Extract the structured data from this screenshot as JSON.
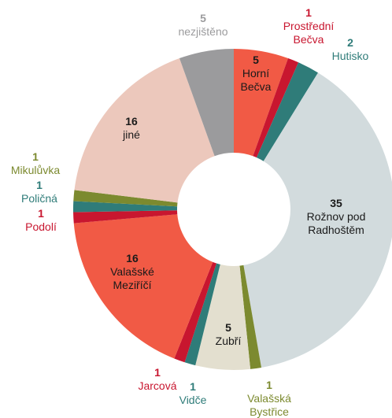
{
  "chart_data": {
    "type": "donut",
    "categories": [
      "Horní Bečva",
      "Prostřední Bečva",
      "Hutisko",
      "Rožnov pod Radhoštěm",
      "Valašská Bystřice",
      "Zubří",
      "Vidče",
      "Jarcová",
      "Valašské Meziříčí",
      "Podolí",
      "Poličná",
      "Mikulůvka",
      "jiné",
      "nezjištěno"
    ],
    "values": [
      5,
      1,
      2,
      35,
      1,
      5,
      1,
      1,
      16,
      1,
      1,
      1,
      16,
      5
    ],
    "colors": [
      "#f15a45",
      "#c8162f",
      "#2f7c79",
      "#d2dbdd",
      "#7c8a2f",
      "#e3dfcf",
      "#2f7c79",
      "#c8162f",
      "#f15a45",
      "#c8162f",
      "#2f7c79",
      "#7c8a2f",
      "#ecc8bc",
      "#9b9b9d"
    ]
  }
}
